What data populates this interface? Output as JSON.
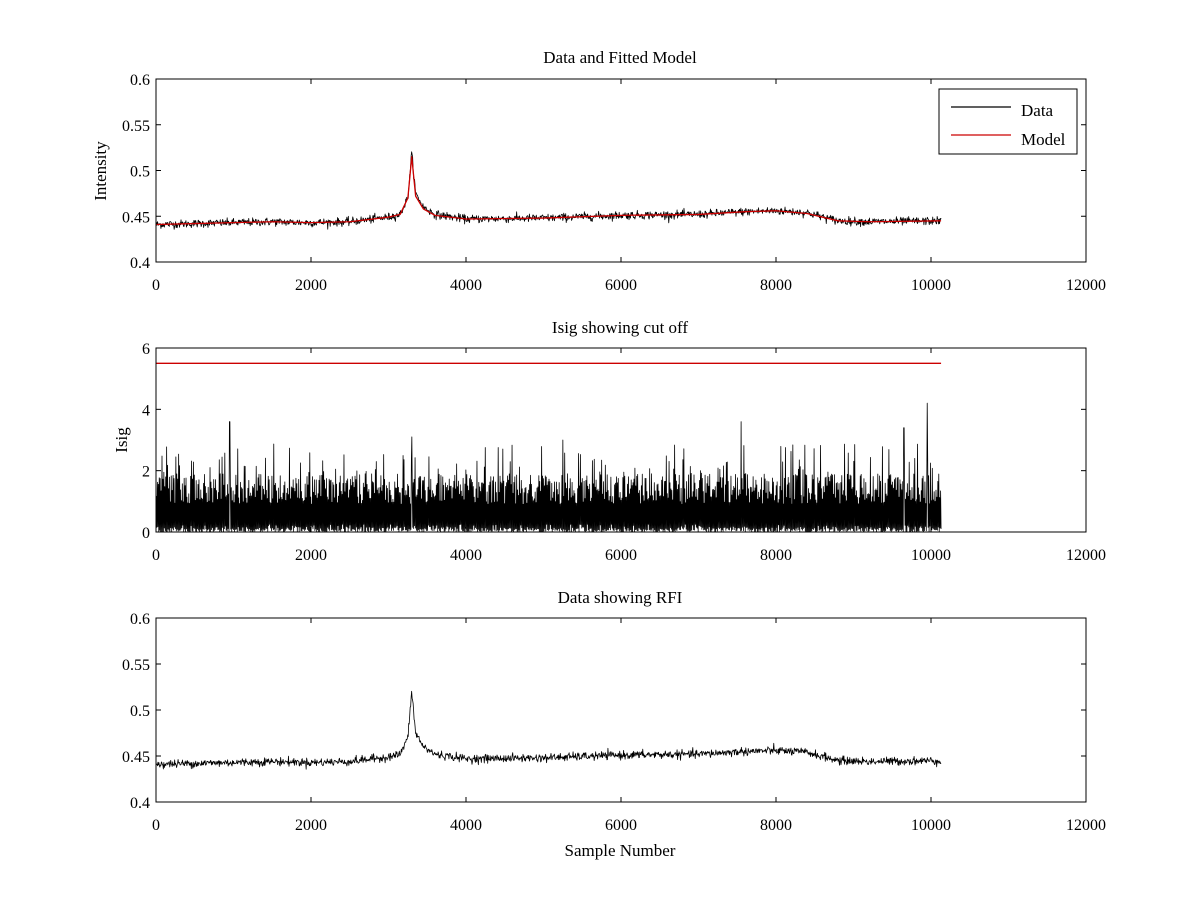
{
  "figure": {
    "background": "#ffffff"
  },
  "chart_data": [
    {
      "type": "line",
      "title": "Data and Fitted Model",
      "xlabel": "",
      "ylabel": "Intensity",
      "xlim": [
        0,
        12000
      ],
      "ylim": [
        0.4,
        0.6
      ],
      "xticks": [
        0,
        2000,
        4000,
        6000,
        8000,
        10000,
        12000
      ],
      "xtick_labels": [
        "0",
        "2000",
        "4000",
        "6000",
        "8000",
        "10000",
        "12000"
      ],
      "yticks": [
        0.4,
        0.45,
        0.5,
        0.55,
        0.6
      ],
      "ytick_labels": [
        "0.4",
        "0.45",
        "0.5",
        "0.55",
        "0.6"
      ],
      "grid": false,
      "legend": {
        "placement": "top-right",
        "entries": [
          "Data",
          "Model"
        ]
      },
      "series": [
        {
          "name": "Data",
          "color": "#000000",
          "x": [
            0,
            500,
            1000,
            1500,
            2000,
            2500,
            3000,
            3150,
            3250,
            3300,
            3350,
            3450,
            3600,
            4000,
            5000,
            6000,
            7000,
            7600,
            8000,
            8400,
            8800,
            9200,
            10130
          ],
          "y": [
            0.441,
            0.442,
            0.443,
            0.444,
            0.443,
            0.444,
            0.449,
            0.452,
            0.47,
            0.52,
            0.475,
            0.46,
            0.452,
            0.447,
            0.448,
            0.451,
            0.452,
            0.455,
            0.456,
            0.454,
            0.445,
            0.444,
            0.445
          ],
          "noise_amplitude": 0.004
        },
        {
          "name": "Model",
          "color": "#cc0000",
          "x": [
            0,
            500,
            1000,
            1500,
            2000,
            2500,
            3000,
            3150,
            3250,
            3300,
            3350,
            3450,
            3600,
            4000,
            5000,
            6000,
            7000,
            7600,
            8000,
            8400,
            8800,
            9200,
            10130
          ],
          "y": [
            0.441,
            0.442,
            0.443,
            0.444,
            0.443,
            0.444,
            0.449,
            0.452,
            0.47,
            0.515,
            0.472,
            0.458,
            0.451,
            0.447,
            0.448,
            0.451,
            0.452,
            0.455,
            0.456,
            0.453,
            0.445,
            0.444,
            0.445
          ]
        }
      ]
    },
    {
      "type": "line",
      "title": "Isig showing cut off",
      "xlabel": "",
      "ylabel": "Isig",
      "xlim": [
        0,
        12000
      ],
      "ylim": [
        0,
        6
      ],
      "xticks": [
        0,
        2000,
        4000,
        6000,
        8000,
        10000,
        12000
      ],
      "xtick_labels": [
        "0",
        "2000",
        "4000",
        "6000",
        "8000",
        "10000",
        "12000"
      ],
      "yticks": [
        0,
        2,
        4,
        6
      ],
      "ytick_labels": [
        "0",
        "2",
        "4",
        "6"
      ],
      "grid": false,
      "series": [
        {
          "color": "#000000",
          "x": [
            0,
            10130
          ],
          "y_range": [
            0,
            4.2
          ],
          "typical_max": 2.5,
          "spikes": [
            [
              950,
              3.6
            ],
            [
              3300,
              3.1
            ],
            [
              5250,
              3.0
            ],
            [
              7550,
              3.6
            ],
            [
              9650,
              3.4
            ],
            [
              9950,
              4.2
            ]
          ]
        },
        {
          "color": "#cc0000",
          "x": [
            0,
            10130
          ],
          "y": [
            5.5,
            5.5
          ]
        }
      ]
    },
    {
      "type": "line",
      "title": "Data showing RFI",
      "xlabel": "Sample Number",
      "ylabel": "",
      "xlim": [
        0,
        12000
      ],
      "ylim": [
        0.4,
        0.6
      ],
      "xticks": [
        0,
        2000,
        4000,
        6000,
        8000,
        10000,
        12000
      ],
      "xtick_labels": [
        "0",
        "2000",
        "4000",
        "6000",
        "8000",
        "10000",
        "12000"
      ],
      "yticks": [
        0.4,
        0.45,
        0.5,
        0.55,
        0.6
      ],
      "ytick_labels": [
        "0.4",
        "0.45",
        "0.5",
        "0.55",
        "0.6"
      ],
      "grid": false,
      "series": [
        {
          "color": "#000000",
          "x": [
            0,
            500,
            1000,
            1500,
            2000,
            2500,
            3000,
            3150,
            3250,
            3300,
            3350,
            3450,
            3600,
            4000,
            5000,
            6000,
            7000,
            7600,
            8000,
            8400,
            8800,
            9200,
            10130
          ],
          "y": [
            0.441,
            0.442,
            0.443,
            0.444,
            0.443,
            0.444,
            0.449,
            0.452,
            0.47,
            0.52,
            0.475,
            0.46,
            0.452,
            0.447,
            0.448,
            0.451,
            0.452,
            0.455,
            0.456,
            0.454,
            0.445,
            0.444,
            0.445
          ],
          "noise_amplitude": 0.004
        }
      ]
    }
  ]
}
